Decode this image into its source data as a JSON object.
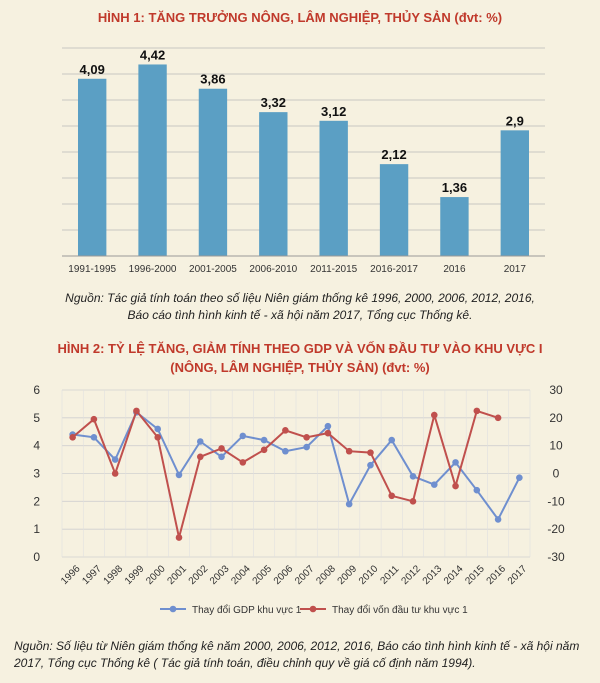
{
  "chart_data": [
    {
      "type": "bar",
      "title": "HÌNH 1: TĂNG TRƯỞNG NÔNG, LÂM NGHIỆP, THỦY SẢN (đvt: %)",
      "categories": [
        "1991-1995",
        "1996-2000",
        "2001-2005",
        "2006-2010",
        "2011-2015",
        "2016-2017",
        "2016",
        "2017"
      ],
      "values": [
        4.09,
        4.42,
        3.86,
        3.32,
        3.12,
        2.12,
        1.36,
        2.9
      ],
      "value_labels": [
        "4,09",
        "4,42",
        "3,86",
        "3,32",
        "3,12",
        "2,12",
        "1,36",
        "2,9"
      ],
      "ylim": [
        0,
        4.8
      ],
      "grid": true,
      "bar_color": "#5b9fc4",
      "source": [
        "Nguồn: Tác giả tính toán theo số liệu Niên giám thống kê 1996, 2000, 2006, 2012, 2016,",
        "Báo cáo tình hình kinh tế - xã hội năm 2017, Tổng cục Thống kê."
      ]
    },
    {
      "type": "line",
      "title_lines": [
        "HÌNH 2: TỶ LỆ TĂNG, GIẢM TÍNH THEO GDP VÀ VỐN ĐẦU TƯ VÀO KHU VỰC I",
        "(NÔNG, LÂM NGHIỆP, THỦY SẢN) (đvt: %)"
      ],
      "x": [
        "1996",
        "1997",
        "1998",
        "1999",
        "2000",
        "2001",
        "2002",
        "2003",
        "2004",
        "2005",
        "2006",
        "2007",
        "2008",
        "2009",
        "2010",
        "2011",
        "2012",
        "2013",
        "2014",
        "2015",
        "2016",
        "2017"
      ],
      "y_left_ticks": [
        "0",
        "1",
        "2",
        "3",
        "4",
        "5",
        "6"
      ],
      "y_right_ticks": [
        "30",
        "20",
        "10",
        "0",
        "-10",
        "-20",
        "-30"
      ],
      "ylim_left": [
        0,
        6
      ],
      "ylim_right": [
        -30,
        30
      ],
      "series": [
        {
          "name": "Thay đổi GDP khu vực 1",
          "axis": "left",
          "color": "#6f8fcf",
          "values": [
            4.4,
            4.3,
            3.5,
            5.2,
            4.6,
            2.95,
            4.15,
            3.6,
            4.35,
            4.2,
            3.8,
            3.95,
            4.7,
            1.9,
            3.3,
            4.2,
            2.9,
            2.6,
            3.4,
            2.4,
            1.35,
            2.85
          ]
        },
        {
          "name": "Thay đổi vốn đầu tư khu vực 1",
          "axis": "right",
          "color": "#c0504d",
          "values": [
            13,
            19.5,
            0,
            22.5,
            13,
            -23,
            6,
            9,
            4,
            8.5,
            15.5,
            13,
            14.5,
            8,
            7.5,
            -8,
            -10,
            21,
            -4.5,
            22.5,
            20,
            null
          ]
        }
      ],
      "legend_position": "bottom",
      "grid": true,
      "source": "Nguồn: Số liệu từ Niên giám thống kê năm 2000, 2006, 2012, 2016, Báo cáo tình hình kinh tế - xã hội năm 2017, Tổng cục Thống kê ( Tác giả tính toán, điều chỉnh quy về giá cố định năm 1994)."
    }
  ]
}
